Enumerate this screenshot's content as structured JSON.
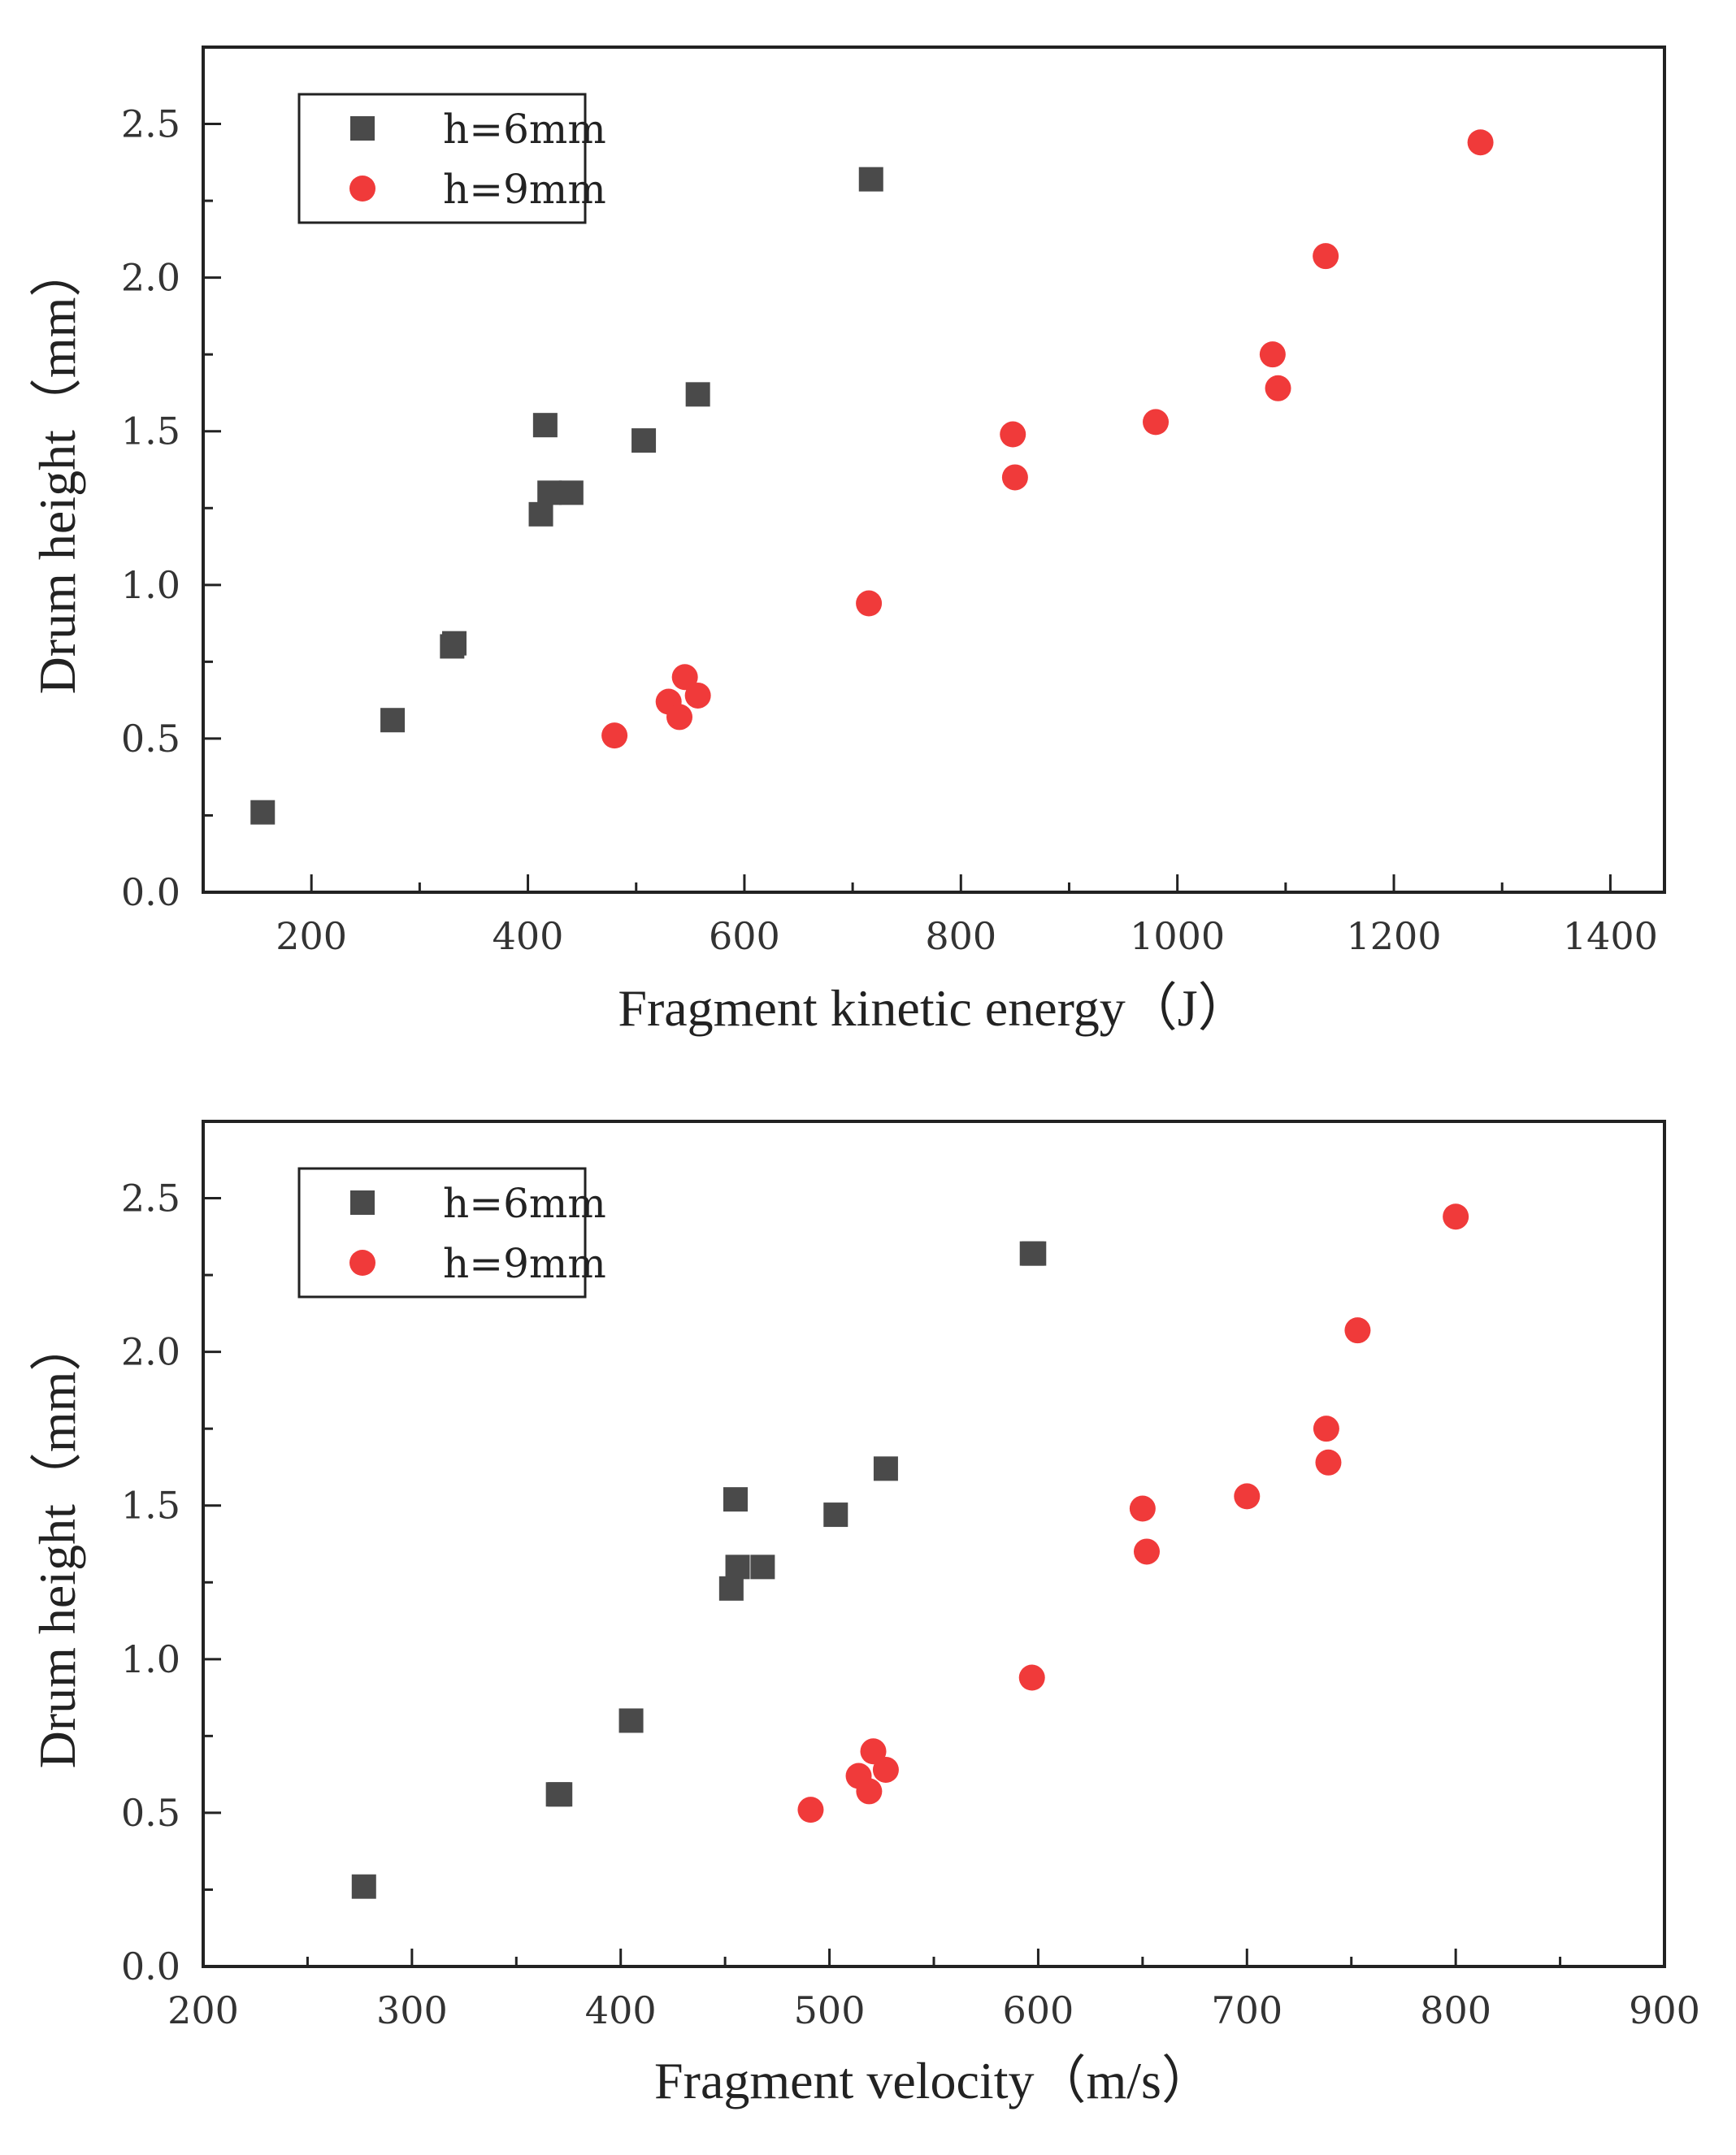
{
  "colors": {
    "h6": "#4a4a4a",
    "h9": "#f03a3a",
    "axis": "#222222"
  },
  "chart_data": [
    {
      "type": "scatter",
      "xlabel": "Fragment kinetic energy（J）",
      "ylabel": "Drum height（mm）",
      "xlim": [
        100,
        1450
      ],
      "ylim": [
        0,
        2.75
      ],
      "x_major_ticks": [
        200,
        400,
        600,
        800,
        1000,
        1200,
        1400
      ],
      "x_tick_labels": [
        "200",
        "400",
        "600",
        "800",
        "1000",
        "1200",
        "1400"
      ],
      "x_minor_step": 100,
      "y_major_ticks": [
        0,
        0.5,
        1.0,
        1.5,
        2.0,
        2.5
      ],
      "y_tick_labels": [
        "0.0",
        "0.5",
        "1.0",
        "1.5",
        "2.0",
        "2.5"
      ],
      "y_minor_step": 0.25,
      "legend_position": "top-left",
      "series": [
        {
          "name": "h=6mm",
          "marker": "square",
          "x": [
            155,
            275,
            330,
            332,
            412,
            416,
            420,
            440,
            507,
            557,
            717
          ],
          "y": [
            0.26,
            0.56,
            0.8,
            0.81,
            1.23,
            1.52,
            1.3,
            1.3,
            1.47,
            1.62,
            2.32
          ]
        },
        {
          "name": "h=9mm",
          "marker": "circle",
          "x": [
            480,
            530,
            540,
            545,
            557,
            715,
            848,
            850,
            980,
            1088,
            1093,
            1137,
            1280
          ],
          "y": [
            0.51,
            0.62,
            0.57,
            0.7,
            0.64,
            0.94,
            1.49,
            1.35,
            1.53,
            1.75,
            1.64,
            2.07,
            2.44
          ]
        }
      ]
    },
    {
      "type": "scatter",
      "xlabel": "Fragment velocity（m/s）",
      "ylabel": "Drum height（mm）",
      "xlim": [
        200,
        900
      ],
      "ylim": [
        0,
        2.75
      ],
      "x_major_ticks": [
        200,
        300,
        400,
        500,
        600,
        700,
        800,
        900
      ],
      "x_tick_labels": [
        "200",
        "300",
        "400",
        "500",
        "600",
        "700",
        "800",
        "900"
      ],
      "x_minor_step": 50,
      "y_major_ticks": [
        0,
        0.5,
        1.0,
        1.5,
        2.0,
        2.5
      ],
      "y_tick_labels": [
        "0.0",
        "0.5",
        "1.0",
        "1.5",
        "2.0",
        "2.5"
      ],
      "y_minor_step": 0.25,
      "legend_position": "top-left",
      "series": [
        {
          "name": "h=6mm",
          "marker": "square",
          "x": [
            277,
            370,
            371,
            405,
            453,
            455,
            456,
            468,
            503,
            527,
            597,
            598
          ],
          "y": [
            0.26,
            0.56,
            0.56,
            0.8,
            1.23,
            1.52,
            1.3,
            1.3,
            1.47,
            1.62,
            2.32,
            2.32
          ]
        },
        {
          "name": "h=9mm",
          "marker": "circle",
          "x": [
            491,
            514,
            519,
            521,
            527,
            597,
            650,
            652,
            700,
            738,
            739,
            753,
            800
          ],
          "y": [
            0.51,
            0.62,
            0.57,
            0.7,
            0.64,
            0.94,
            1.49,
            1.35,
            1.53,
            1.75,
            1.64,
            2.07,
            2.44
          ]
        }
      ]
    }
  ]
}
